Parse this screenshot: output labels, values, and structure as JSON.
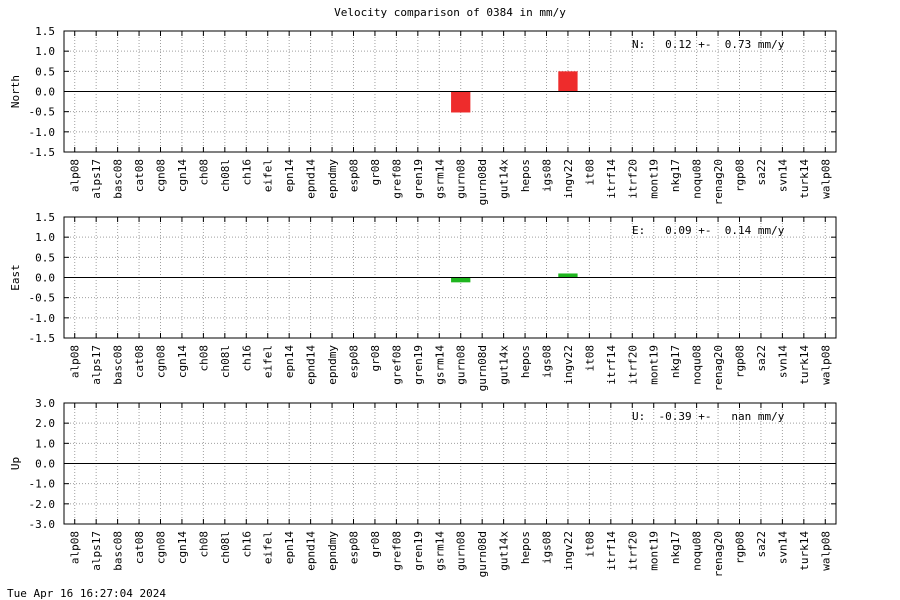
{
  "title": "Velocity comparison of 0384 in mm/y",
  "footer": "Tue Apr 16 16:27:04 2024",
  "colors": {
    "north": "#ee2c2c",
    "east": "#1fb51f",
    "up": "#1f1fee",
    "grid": "#a0a0a0"
  },
  "chart_data": [
    {
      "type": "bar",
      "ylabel": "North",
      "ylim": [
        -1.5,
        1.5
      ],
      "yticks": [
        "1.5",
        "1.0",
        "0.5",
        "0.0",
        "-0.5",
        "-1.0",
        "-1.5"
      ],
      "grid": true,
      "annotation": "N:   0.12 +-  0.73 mm/y",
      "categories": [
        "alp08",
        "alps17",
        "basc08",
        "cat08",
        "cgn08",
        "cgn14",
        "ch08",
        "ch08l",
        "ch16",
        "eifel",
        "epn14",
        "epnd14",
        "epndmy",
        "esp08",
        "gr08",
        "gref08",
        "gren19",
        "gsrm14",
        "gurn08",
        "gurn08d",
        "gut14x",
        "hepos",
        "igs08",
        "ingv22",
        "it08",
        "itrf14",
        "itrf20",
        "mont19",
        "nkg17",
        "noqu08",
        "renag20",
        "rgp08",
        "sa22",
        "svn14",
        "turk14",
        "walp08"
      ],
      "values": [
        null,
        null,
        null,
        null,
        null,
        null,
        null,
        null,
        null,
        null,
        null,
        null,
        null,
        null,
        null,
        null,
        null,
        null,
        -0.52,
        null,
        null,
        null,
        null,
        0.5,
        null,
        null,
        null,
        null,
        null,
        null,
        null,
        null,
        null,
        null,
        null,
        null
      ]
    },
    {
      "type": "bar",
      "ylabel": "East",
      "ylim": [
        -1.5,
        1.5
      ],
      "yticks": [
        "1.5",
        "1.0",
        "0.5",
        "0.0",
        "-0.5",
        "-1.0",
        "-1.5"
      ],
      "grid": true,
      "annotation": "E:   0.09 +-  0.14 mm/y",
      "categories": [
        "alp08",
        "alps17",
        "basc08",
        "cat08",
        "cgn08",
        "cgn14",
        "ch08",
        "ch08l",
        "ch16",
        "eifel",
        "epn14",
        "epnd14",
        "epndmy",
        "esp08",
        "gr08",
        "gref08",
        "gren19",
        "gsrm14",
        "gurn08",
        "gurn08d",
        "gut14x",
        "hepos",
        "igs08",
        "ingv22",
        "it08",
        "itrf14",
        "itrf20",
        "mont19",
        "nkg17",
        "noqu08",
        "renag20",
        "rgp08",
        "sa22",
        "svn14",
        "turk14",
        "walp08"
      ],
      "values": [
        null,
        null,
        null,
        null,
        null,
        null,
        null,
        null,
        null,
        null,
        null,
        null,
        null,
        null,
        null,
        null,
        null,
        null,
        -0.12,
        null,
        null,
        null,
        null,
        0.1,
        null,
        null,
        null,
        null,
        null,
        null,
        null,
        null,
        null,
        null,
        null,
        null
      ]
    },
    {
      "type": "bar",
      "ylabel": "Up",
      "ylim": [
        -3.0,
        3.0
      ],
      "yticks": [
        "3.0",
        "2.0",
        "1.0",
        "0.0",
        "-1.0",
        "-2.0",
        "-3.0"
      ],
      "grid": true,
      "annotation": "U:  -0.39 +-   nan mm/y",
      "categories": [
        "alp08",
        "alps17",
        "basc08",
        "cat08",
        "cgn08",
        "cgn14",
        "ch08",
        "ch08l",
        "ch16",
        "eifel",
        "epn14",
        "epnd14",
        "epndmy",
        "esp08",
        "gr08",
        "gref08",
        "gren19",
        "gsrm14",
        "gurn08",
        "gurn08d",
        "gut14x",
        "hepos",
        "igs08",
        "ingv22",
        "it08",
        "itrf14",
        "itrf20",
        "mont19",
        "nkg17",
        "noqu08",
        "renag20",
        "rgp08",
        "sa22",
        "svn14",
        "turk14",
        "walp08"
      ],
      "values": [
        null,
        null,
        null,
        null,
        null,
        null,
        null,
        null,
        null,
        null,
        null,
        null,
        null,
        null,
        null,
        null,
        null,
        null,
        null,
        null,
        null,
        null,
        null,
        null,
        null,
        null,
        null,
        null,
        null,
        null,
        null,
        null,
        null,
        null,
        null,
        null
      ]
    }
  ]
}
